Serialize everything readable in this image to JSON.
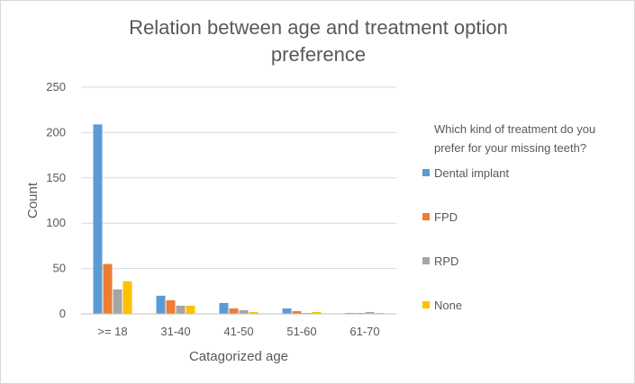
{
  "chart_data": {
    "type": "bar",
    "title": "Relation between age and treatment option preference",
    "title_lines": [
      "Relation between age and treatment option",
      "preference"
    ],
    "xlabel": "Catagorized age",
    "ylabel": "Count",
    "ylim": [
      0,
      250
    ],
    "yticks": [
      0,
      50,
      100,
      150,
      200,
      250
    ],
    "grid": true,
    "legend_position": "right",
    "legend_title": "Which kind of treatment do you prefer for your missing teeth?",
    "legend_title_lines": [
      "Which kind of treatment do you",
      "prefer for your missing teeth?"
    ],
    "categories": [
      ">= 18",
      "31-40",
      "41-50",
      "51-60",
      "61-70"
    ],
    "series": [
      {
        "name": "Dental implant",
        "color": "#5b9bd5",
        "values": [
          209,
          20,
          12,
          6,
          1
        ]
      },
      {
        "name": "FPD",
        "color": "#ed7d31",
        "values": [
          55,
          15,
          6,
          3,
          1
        ]
      },
      {
        "name": "RPD",
        "color": "#a5a5a5",
        "values": [
          27,
          9,
          4,
          1,
          2
        ]
      },
      {
        "name": "None",
        "color": "#ffc000",
        "values": [
          36,
          9,
          2,
          2,
          1
        ]
      }
    ]
  }
}
